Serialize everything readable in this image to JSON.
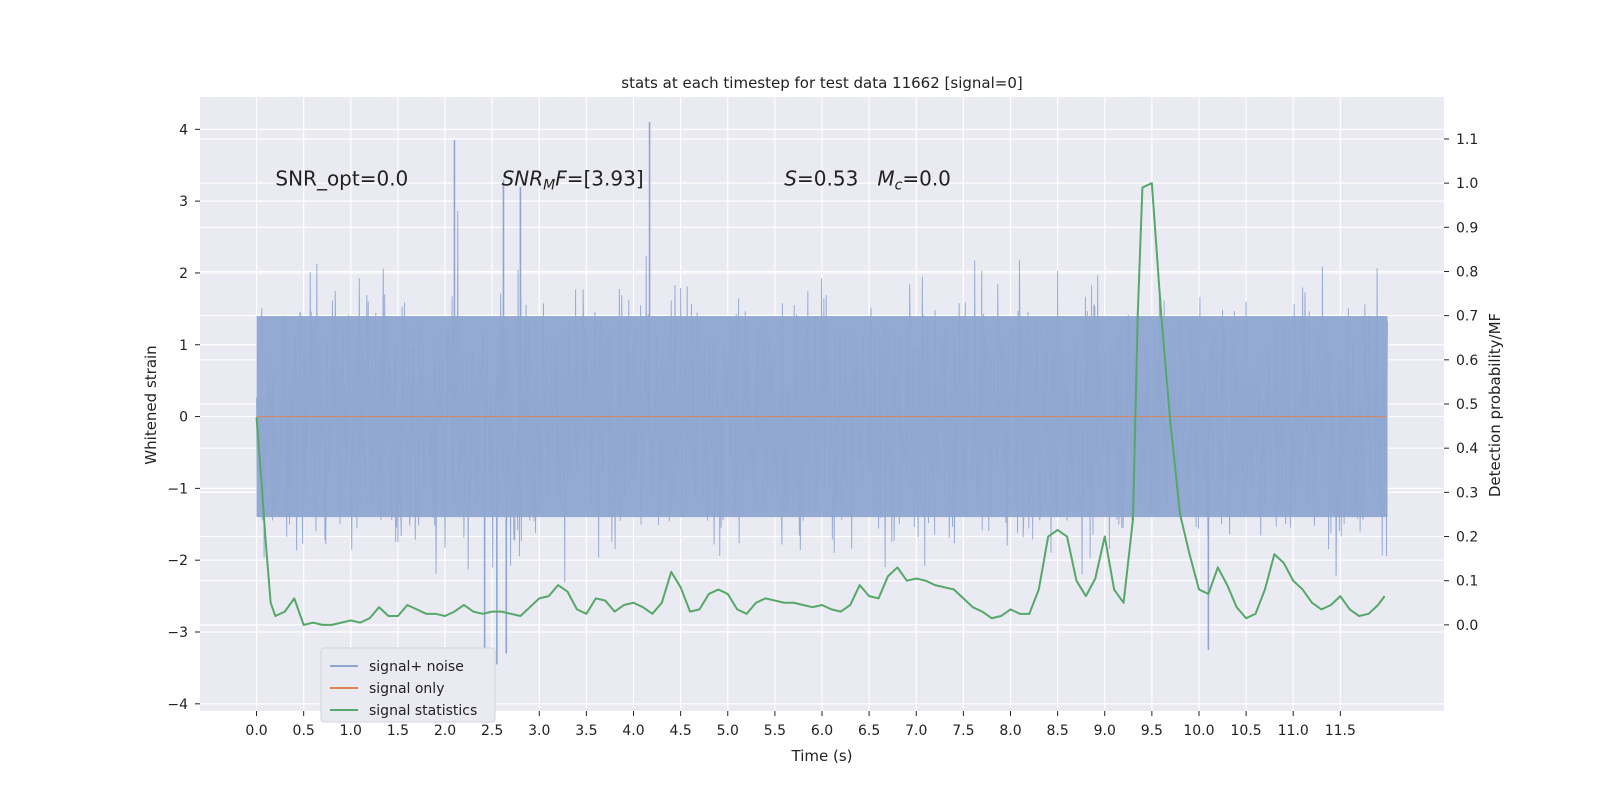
{
  "chart_data": {
    "type": "line",
    "title": "stats at each timestep for test data 11662 [signal=0]",
    "xlabel": "Time (s)",
    "ylabel_left": "Whitened strain",
    "ylabel_right": "Detection probability/MF",
    "xlim": [
      -0.6,
      12.6
    ],
    "ylim_left": [
      -4.1,
      4.45
    ],
    "ylim_right": [
      -0.195,
      1.195
    ],
    "x_ticks": [
      0.0,
      0.5,
      1.0,
      1.5,
      2.0,
      2.5,
      3.0,
      3.5,
      4.0,
      4.5,
      5.0,
      5.5,
      6.0,
      6.5,
      7.0,
      7.5,
      8.0,
      8.5,
      9.0,
      9.5,
      10.0,
      10.5,
      11.0,
      11.5
    ],
    "x_tick_labels": [
      "0.0",
      "0.5",
      "1.0",
      "1.5",
      "2.0",
      "2.5",
      "3.0",
      "3.5",
      "4.0",
      "4.5",
      "5.0",
      "5.5",
      "6.0",
      "6.5",
      "7.0",
      "7.5",
      "8.0",
      "8.5",
      "9.0",
      "9.5",
      "10.0",
      "10.5",
      "11.0",
      "11.5"
    ],
    "y_left_ticks": [
      -4,
      -3,
      -2,
      -1,
      0,
      1,
      2,
      3,
      4
    ],
    "y_left_tick_labels": [
      "−4",
      "−3",
      "−2",
      "−1",
      "0",
      "1",
      "2",
      "3",
      "4"
    ],
    "y_right_ticks": [
      0.0,
      0.1,
      0.2,
      0.3,
      0.4,
      0.5,
      0.6,
      0.7,
      0.8,
      0.9,
      1.0,
      1.1
    ],
    "y_right_tick_labels": [
      "0.0",
      "0.1",
      "0.2",
      "0.3",
      "0.4",
      "0.5",
      "0.6",
      "0.7",
      "0.8",
      "0.9",
      "1.0",
      "1.1"
    ],
    "grid": true,
    "legend_position": "bottom-left",
    "annotations": [
      {
        "text": "SNR_opt=0.0",
        "x": 0.2,
        "y": 3.3
      },
      {
        "text": "SNR_MF=[3.93]",
        "x": 2.6,
        "y": 3.3
      },
      {
        "text": "S=0.53   M_c=0.0",
        "x": 5.6,
        "y": 3.3
      }
    ],
    "series": [
      {
        "name": "signal+ noise",
        "axis": "left",
        "color": "#8fa6d0",
        "x_range": [
          0.0,
          12.0
        ],
        "band_upper": 1.4,
        "band_lower": -1.4,
        "spike_max": [
          4.1,
          3.85,
          3.3,
          3.2
        ],
        "spike_min": [
          -3.7,
          -3.45,
          -3.3,
          -3.25
        ]
      },
      {
        "name": "signal only",
        "axis": "left",
        "color": "#dd8452",
        "x": [
          0.0,
          12.0
        ],
        "values": [
          0.0,
          0.0
        ]
      },
      {
        "name": "signal statistics",
        "axis": "right",
        "color": "#55a868",
        "x": [
          0.0,
          0.05,
          0.1,
          0.15,
          0.2,
          0.3,
          0.4,
          0.5,
          0.6,
          0.7,
          0.8,
          0.9,
          1.0,
          1.1,
          1.2,
          1.3,
          1.4,
          1.5,
          1.6,
          1.7,
          1.8,
          1.9,
          2.0,
          2.1,
          2.2,
          2.3,
          2.4,
          2.5,
          2.6,
          2.7,
          2.8,
          2.9,
          3.0,
          3.1,
          3.2,
          3.3,
          3.4,
          3.5,
          3.6,
          3.7,
          3.8,
          3.9,
          4.0,
          4.1,
          4.2,
          4.3,
          4.4,
          4.5,
          4.6,
          4.7,
          4.8,
          4.9,
          5.0,
          5.1,
          5.2,
          5.3,
          5.4,
          5.5,
          5.6,
          5.7,
          5.8,
          5.9,
          6.0,
          6.1,
          6.2,
          6.3,
          6.4,
          6.5,
          6.6,
          6.7,
          6.8,
          6.9,
          7.0,
          7.1,
          7.2,
          7.3,
          7.4,
          7.5,
          7.6,
          7.7,
          7.8,
          7.9,
          8.0,
          8.1,
          8.2,
          8.3,
          8.4,
          8.5,
          8.6,
          8.7,
          8.8,
          8.9,
          9.0,
          9.1,
          9.2,
          9.3,
          9.35,
          9.4,
          9.5,
          9.6,
          9.7,
          9.8,
          9.9,
          10.0,
          10.1,
          10.2,
          10.3,
          10.4,
          10.5,
          10.6,
          10.7,
          10.8,
          10.9,
          11.0,
          11.1,
          11.2,
          11.3,
          11.4,
          11.5,
          11.6,
          11.7,
          11.8,
          11.9,
          11.97
        ],
        "values": [
          0.47,
          0.33,
          0.18,
          0.05,
          0.02,
          0.03,
          0.06,
          0.0,
          0.005,
          0.0,
          0.0,
          0.005,
          0.01,
          0.005,
          0.015,
          0.04,
          0.02,
          0.02,
          0.045,
          0.035,
          0.025,
          0.025,
          0.02,
          0.03,
          0.045,
          0.03,
          0.025,
          0.03,
          0.03,
          0.025,
          0.02,
          0.04,
          0.06,
          0.065,
          0.09,
          0.075,
          0.035,
          0.025,
          0.06,
          0.055,
          0.03,
          0.045,
          0.05,
          0.04,
          0.025,
          0.05,
          0.12,
          0.085,
          0.03,
          0.035,
          0.07,
          0.08,
          0.07,
          0.035,
          0.025,
          0.05,
          0.06,
          0.055,
          0.05,
          0.05,
          0.045,
          0.04,
          0.045,
          0.035,
          0.03,
          0.045,
          0.09,
          0.065,
          0.06,
          0.11,
          0.13,
          0.1,
          0.105,
          0.1,
          0.09,
          0.085,
          0.08,
          0.06,
          0.04,
          0.03,
          0.015,
          0.02,
          0.035,
          0.025,
          0.025,
          0.08,
          0.2,
          0.215,
          0.2,
          0.1,
          0.065,
          0.105,
          0.2,
          0.08,
          0.05,
          0.24,
          0.7,
          0.99,
          1.0,
          0.7,
          0.45,
          0.25,
          0.16,
          0.08,
          0.07,
          0.13,
          0.09,
          0.04,
          0.015,
          0.025,
          0.08,
          0.16,
          0.14,
          0.1,
          0.08,
          0.05,
          0.035,
          0.045,
          0.065,
          0.035,
          0.02,
          0.025,
          0.045,
          0.065
        ]
      }
    ]
  }
}
